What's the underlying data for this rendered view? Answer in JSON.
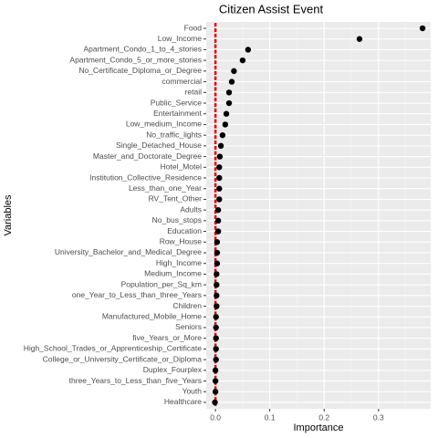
{
  "chart_data": {
    "type": "dot",
    "title": "Citizen Assist Event",
    "x_label": "Importance",
    "y_label": "Variables",
    "categories": [
      "Food",
      "Low_Income",
      "Apartment_Condo_1_to_4_stories",
      "Apartment_Condo_5_or_more_stories",
      "No_Certificate_Diploma_or_Degree",
      "commercial",
      "retail",
      "Public_Service",
      "Entertainment",
      "Low_medium_Income",
      "No_traffic_lights",
      "Single_Detached_House",
      "Master_and_Doctorate_Degree",
      "Hotel_Motel",
      "Institution_Collective_Residence",
      "Less_than_one_Year",
      "RV_Tent_Other",
      "Adults",
      "No_bus_stops",
      "Education",
      "Row_House",
      "University_Bachelor_and_Medical_Degree",
      "High_Income",
      "Medium_Income",
      "Population_per_Sq_km",
      "one_Year_to_Less_than_three_Years",
      "Children",
      "Manufactured_Mobile_Home",
      "Seniors",
      "five_Years_or_More",
      "High_School_Trades_or_Apprenticeship_Certificate",
      "College_or_University_Certificate_or_Diploma",
      "Duplex_Fourplex",
      "three_Years_to_Less_than_five_Years",
      "Youth",
      "Healthcare"
    ],
    "values": [
      0.381,
      0.265,
      0.06,
      0.05,
      0.034,
      0.03,
      0.025,
      0.025,
      0.02,
      0.018,
      0.013,
      0.01,
      0.008,
      0.007,
      0.007,
      0.007,
      0.007,
      0.005,
      0.005,
      0.005,
      0.003,
      0.003,
      0.003,
      0.002,
      0.002,
      0.002,
      0.002,
      0.001,
      0.001,
      0.001,
      0.001,
      0.001,
      0.0,
      0.0,
      0.0,
      -0.001
    ],
    "color": "#000000",
    "reference": {
      "color": "#e00000",
      "values": [
        0,
        0,
        0,
        0,
        0,
        0,
        0,
        0,
        0,
        0,
        0,
        0,
        0,
        0,
        0,
        0,
        0,
        0,
        0,
        0,
        0,
        0,
        0,
        0,
        0,
        0,
        0,
        0,
        0,
        0,
        0,
        0,
        0,
        0,
        0,
        0
      ]
    },
    "xlim": [
      -0.017,
      0.396
    ],
    "xticks": [
      {
        "value": 0,
        "label": "0.0"
      },
      0.1,
      0.2,
      0.3
    ],
    "xminor": [
      0.05,
      0.15,
      0.25,
      0.35
    ],
    "grid": true
  }
}
